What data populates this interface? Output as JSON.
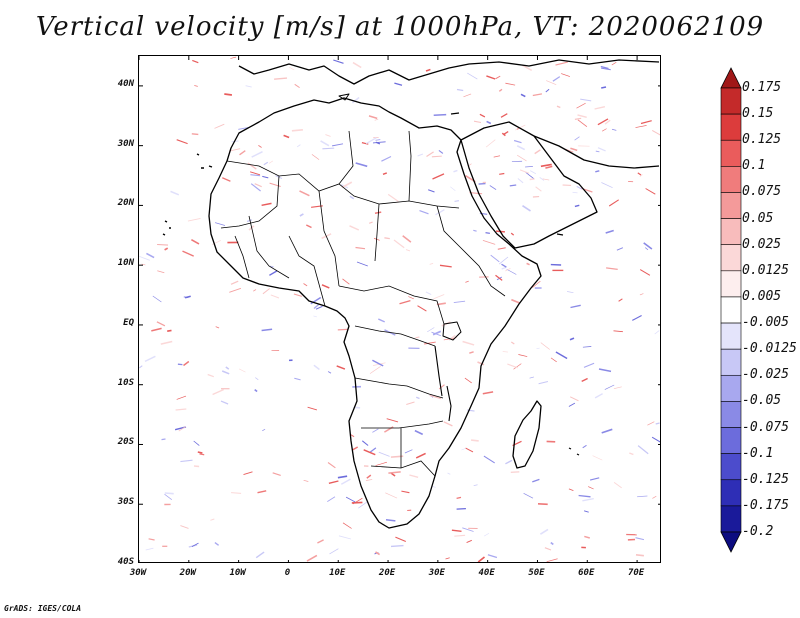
{
  "title": "Vertical velocity [m/s] at 1000hPa, VT: 2020062109",
  "credit": "GrADS: IGES/COLA",
  "map": {
    "region": "Africa",
    "lon_range": [
      -30,
      75
    ],
    "lat_range": [
      -40,
      45
    ],
    "lat_labels": [
      "40N",
      "30N",
      "20N",
      "10N",
      "EQ",
      "10S",
      "20S",
      "30S",
      "40S"
    ],
    "lat_values": [
      40,
      30,
      20,
      10,
      0,
      -10,
      -20,
      -30,
      -40
    ],
    "lon_labels": [
      "30W",
      "20W",
      "10W",
      "0",
      "10E",
      "20E",
      "30E",
      "40E",
      "50E",
      "60E",
      "70E"
    ],
    "lon_values": [
      -30,
      -20,
      -10,
      0,
      10,
      20,
      30,
      40,
      50,
      60,
      70
    ],
    "coastline_color": "#000000",
    "border_color": "#000000"
  },
  "colorbar": {
    "labels": [
      "0.175",
      "0.15",
      "0.125",
      "0.1",
      "0.075",
      "0.05",
      "0.025",
      "0.0125",
      "0.005",
      "-0.005",
      "-0.0125",
      "-0.025",
      "-0.05",
      "-0.075",
      "-0.1",
      "-0.125",
      "-0.175",
      "-0.2"
    ],
    "colors": [
      "#a01818",
      "#c42a2a",
      "#dc3c3c",
      "#ea5c5c",
      "#f07c7c",
      "#f49a9a",
      "#f8bcbc",
      "#fbd8d8",
      "#fdeeee",
      "#ffffff",
      "#e4e4fb",
      "#c8c8f6",
      "#a8a8ef",
      "#8a8ae6",
      "#6c6cdc",
      "#4c4ccc",
      "#2e2eb6",
      "#1a1a9a",
      "#0c0c80"
    ]
  }
}
